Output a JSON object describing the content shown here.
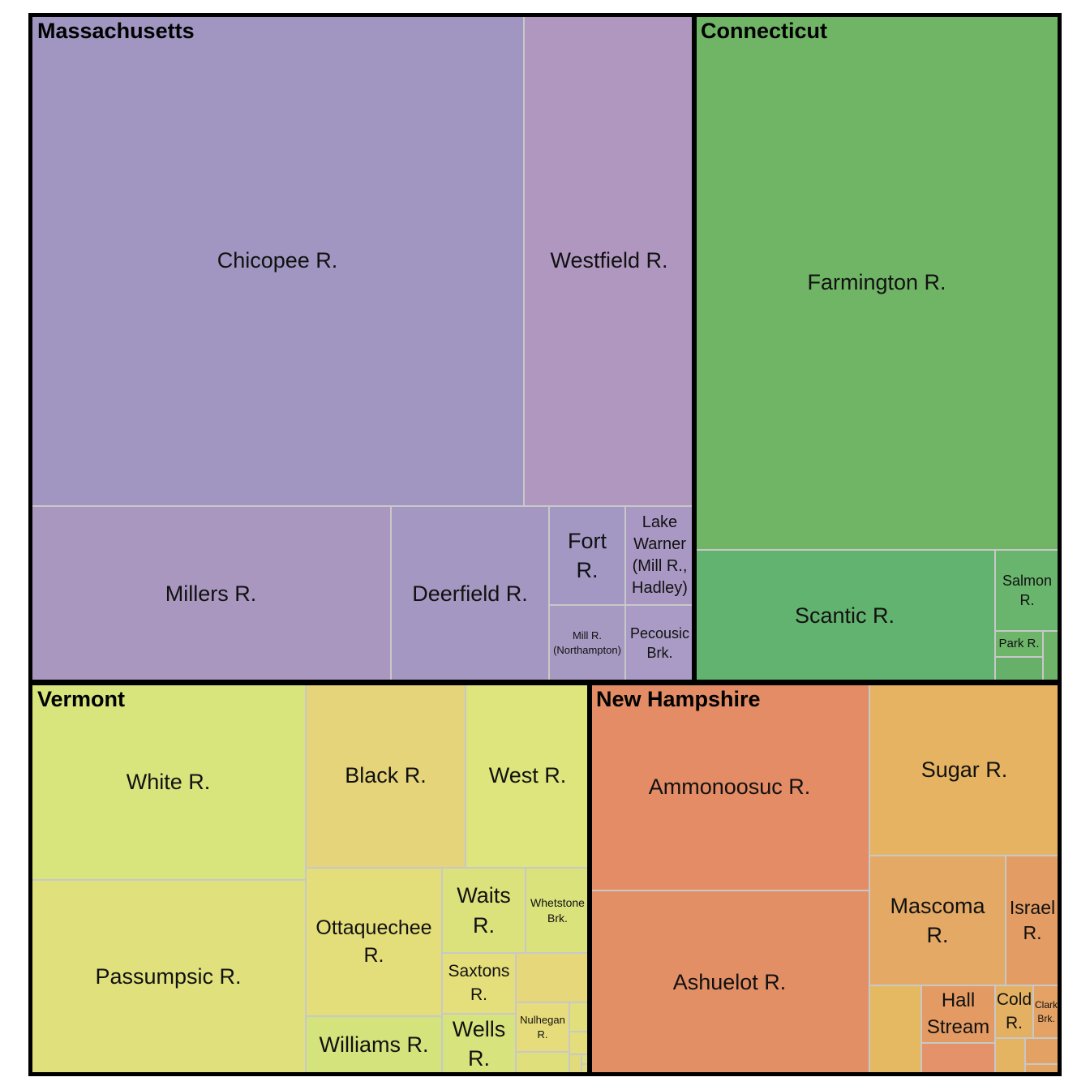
{
  "chart_data": {
    "type": "treemap",
    "groups": [
      {
        "name": "Massachusetts",
        "items": [
          {
            "name": "Chicopee R.",
            "label": [
              "Chicopee R."
            ],
            "color": "#a096c1"
          },
          {
            "name": "Westfield R.",
            "label": [
              "Westfield R."
            ],
            "color": "#b097bf"
          },
          {
            "name": "Millers R.",
            "label": [
              "Millers R."
            ],
            "color": "#a997c0"
          },
          {
            "name": "Deerfield R.",
            "label": [
              "Deerfield R."
            ],
            "color": "#a497c1"
          },
          {
            "name": "Fort R.",
            "label": [
              "Fort",
              "R."
            ],
            "color": "#a298c3"
          },
          {
            "name": "Lake Warner (Mill R., Hadley)",
            "label": [
              "Lake",
              "Warner",
              "(Mill R.,",
              "Hadley)"
            ],
            "color": "#a898c3"
          },
          {
            "name": "Mill R. (Northampton)",
            "label": [
              "Mill R.",
              "(Northampton)"
            ],
            "color": "#a69ac3"
          },
          {
            "name": "Pecousic Brk.",
            "label": [
              "Pecousic",
              "Brk."
            ],
            "color": "#a99bc5"
          }
        ]
      },
      {
        "name": "Connecticut",
        "items": [
          {
            "name": "Farmington R.",
            "label": [
              "Farmington R."
            ],
            "color": "#70b466"
          },
          {
            "name": "Scantic R.",
            "label": [
              "Scantic R."
            ],
            "color": "#63b370"
          },
          {
            "name": "Salmon R.",
            "label": [
              "Salmon",
              "R."
            ],
            "color": "#69b56d"
          },
          {
            "name": "Park R.",
            "label": [
              "Park R."
            ],
            "color": "#6cb569"
          },
          {
            "name": "",
            "label": [],
            "color": "#66b06a"
          },
          {
            "name": "",
            "label": [],
            "color": "#6db36a"
          }
        ]
      },
      {
        "name": "Vermont",
        "items": [
          {
            "name": "White R.",
            "label": [
              "White R."
            ],
            "color": "#d8e47c"
          },
          {
            "name": "Passumpsic R.",
            "label": [
              "Passumpsic R."
            ],
            "color": "#e0e17c"
          },
          {
            "name": "Black R.",
            "label": [
              "Black R."
            ],
            "color": "#e5d47a"
          },
          {
            "name": "West R.",
            "label": [
              "West R."
            ],
            "color": "#dde57c"
          },
          {
            "name": "Ottaquechee R.",
            "label": [
              "Ottaquechee",
              "R."
            ],
            "color": "#e3dd7a"
          },
          {
            "name": "Waits R.",
            "label": [
              "Waits",
              "R."
            ],
            "color": "#dbe27b"
          },
          {
            "name": "Whetstone Brk.",
            "label": [
              "Whetstone",
              "Brk."
            ],
            "color": "#d9e27b"
          },
          {
            "name": "Saxtons R.",
            "label": [
              "Saxtons",
              "R."
            ],
            "color": "#e4df7b"
          },
          {
            "name": "Williams R.",
            "label": [
              "Williams R."
            ],
            "color": "#d5e37c"
          },
          {
            "name": "Wells R.",
            "label": [
              "Wells",
              "R."
            ],
            "color": "#d7e37c"
          },
          {
            "name": "Nulhegan R.",
            "label": [
              "Nulhegan",
              "R."
            ],
            "color": "#e6dc7b"
          },
          {
            "name": "",
            "label": [],
            "color": "#e6d77b"
          },
          {
            "name": "",
            "label": [],
            "color": "#e0df7b"
          },
          {
            "name": "",
            "label": [],
            "color": "#e3de7b"
          },
          {
            "name": "",
            "label": [],
            "color": "#dfe07b"
          },
          {
            "name": "",
            "label": [],
            "color": "#e2db7b"
          },
          {
            "name": "",
            "label": [],
            "color": "#dde07b"
          },
          {
            "name": "",
            "label": [],
            "color": "#e2dd7b"
          }
        ]
      },
      {
        "name": "New Hampshire",
        "items": [
          {
            "name": "Ammonoosuc R.",
            "label": [
              "Ammonoosuc R."
            ],
            "color": "#e38c65"
          },
          {
            "name": "Ashuelot R.",
            "label": [
              "Ashuelot R."
            ],
            "color": "#e38f65"
          },
          {
            "name": "Sugar R.",
            "label": [
              "Sugar R."
            ],
            "color": "#e5b362"
          },
          {
            "name": "Mascoma R.",
            "label": [
              "Mascoma",
              "R."
            ],
            "color": "#e4a964"
          },
          {
            "name": "Israel R.",
            "label": [
              "Israel",
              "R."
            ],
            "color": "#e39c63"
          },
          {
            "name": "",
            "label": [],
            "color": "#e5b862"
          },
          {
            "name": "Hall Stream",
            "label": [
              "Hall",
              "Stream"
            ],
            "color": "#e39b63"
          },
          {
            "name": "Cold R.",
            "label": [
              "Cold",
              "R."
            ],
            "color": "#e4b163"
          },
          {
            "name": "Clark Brk.",
            "label": [
              "Clark",
              "Brk."
            ],
            "color": "#e4a264"
          },
          {
            "name": "",
            "label": [],
            "color": "#e3926a"
          },
          {
            "name": "",
            "label": [],
            "color": "#e4b462"
          },
          {
            "name": "",
            "label": [],
            "color": "#e3a164"
          },
          {
            "name": "",
            "label": [],
            "color": "#e4a563"
          }
        ]
      }
    ]
  }
}
